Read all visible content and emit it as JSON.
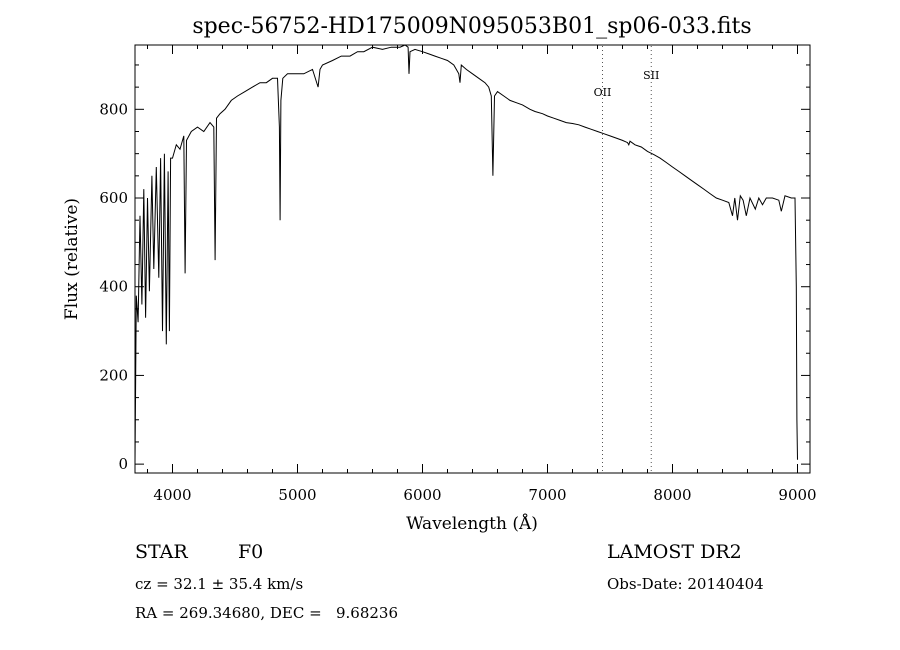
{
  "chart_data": {
    "type": "line",
    "title": "spec-56752-HD175009N095053B01_sp06-033.fits",
    "xlabel": "Wavelength (Å)",
    "ylabel": "Flux (relative)",
    "xlim": [
      3700,
      9100
    ],
    "ylim": [
      -20,
      945
    ],
    "xticks": [
      4000,
      5000,
      6000,
      7000,
      8000,
      9000
    ],
    "yticks": [
      0,
      200,
      400,
      600,
      800
    ],
    "grid": false,
    "series": [
      {
        "x": [
          3700,
          3710,
          3725,
          3740,
          3755,
          3770,
          3785,
          3800,
          3815,
          3835,
          3850,
          3870,
          3890,
          3905,
          3920,
          3935,
          3950,
          3965,
          3975,
          3985,
          4000,
          4030,
          4060,
          4090,
          4101,
          4112,
          4150,
          4200,
          4250,
          4300,
          4330,
          4341,
          4352,
          4380,
          4420,
          4470,
          4520,
          4580,
          4640,
          4700,
          4750,
          4800,
          4840,
          4855,
          4861,
          4867,
          4882,
          4920,
          4980,
          5050,
          5120,
          5165,
          5180,
          5200,
          5280,
          5350,
          5420,
          5480,
          5530,
          5600,
          5680,
          5750,
          5820,
          5860,
          5885,
          5892,
          5900,
          5940,
          6000,
          6050,
          6100,
          6150,
          6200,
          6250,
          6290,
          6300,
          6310,
          6350,
          6400,
          6450,
          6500,
          6530,
          6550,
          6563,
          6576,
          6600,
          6650,
          6700,
          6750,
          6800,
          6860,
          6900,
          6960,
          7000,
          7050,
          7100,
          7150,
          7200,
          7250,
          7300,
          7350,
          7400,
          7450,
          7500,
          7550,
          7600,
          7640,
          7650,
          7660,
          7700,
          7750,
          7800,
          7850,
          7900,
          7950,
          8000,
          8050,
          8100,
          8150,
          8200,
          8250,
          8300,
          8350,
          8400,
          8450,
          8480,
          8498,
          8520,
          8542,
          8565,
          8590,
          8620,
          8662,
          8690,
          8720,
          8750,
          8800,
          8850,
          8870,
          8900,
          8950,
          8980,
          8990,
          8995,
          9000
        ],
        "y": [
          0,
          380,
          320,
          560,
          360,
          620,
          330,
          600,
          390,
          650,
          440,
          670,
          420,
          690,
          300,
          700,
          270,
          660,
          300,
          690,
          690,
          720,
          710,
          740,
          430,
          730,
          750,
          760,
          750,
          770,
          760,
          460,
          780,
          790,
          800,
          820,
          830,
          840,
          850,
          860,
          860,
          870,
          870,
          760,
          550,
          820,
          870,
          880,
          880,
          880,
          890,
          850,
          890,
          900,
          910,
          920,
          920,
          930,
          930,
          940,
          935,
          940,
          940,
          945,
          940,
          880,
          930,
          935,
          930,
          925,
          920,
          915,
          910,
          900,
          880,
          860,
          900,
          890,
          880,
          870,
          860,
          850,
          830,
          650,
          830,
          840,
          830,
          820,
          815,
          810,
          800,
          795,
          790,
          785,
          780,
          775,
          770,
          768,
          765,
          760,
          755,
          750,
          745,
          740,
          735,
          730,
          725,
          720,
          728,
          720,
          715,
          705,
          698,
          690,
          680,
          670,
          660,
          650,
          640,
          630,
          620,
          610,
          600,
          595,
          590,
          560,
          600,
          550,
          605,
          595,
          560,
          600,
          575,
          600,
          585,
          600,
          600,
          595,
          570,
          605,
          600,
          600,
          400,
          100,
          10
        ]
      }
    ],
    "annotations": [
      {
        "text": "OII",
        "x": 7440
      },
      {
        "text": "SII",
        "x": 7830
      }
    ]
  },
  "info": {
    "object_type": "STAR",
    "subclass": "F0",
    "survey": "LAMOST DR2",
    "velocity": "cz = 32.1 ± 35.4 km/s",
    "obs_date": "Obs-Date: 20140404",
    "coordinates": "RA = 269.34680, DEC =   9.68236"
  }
}
